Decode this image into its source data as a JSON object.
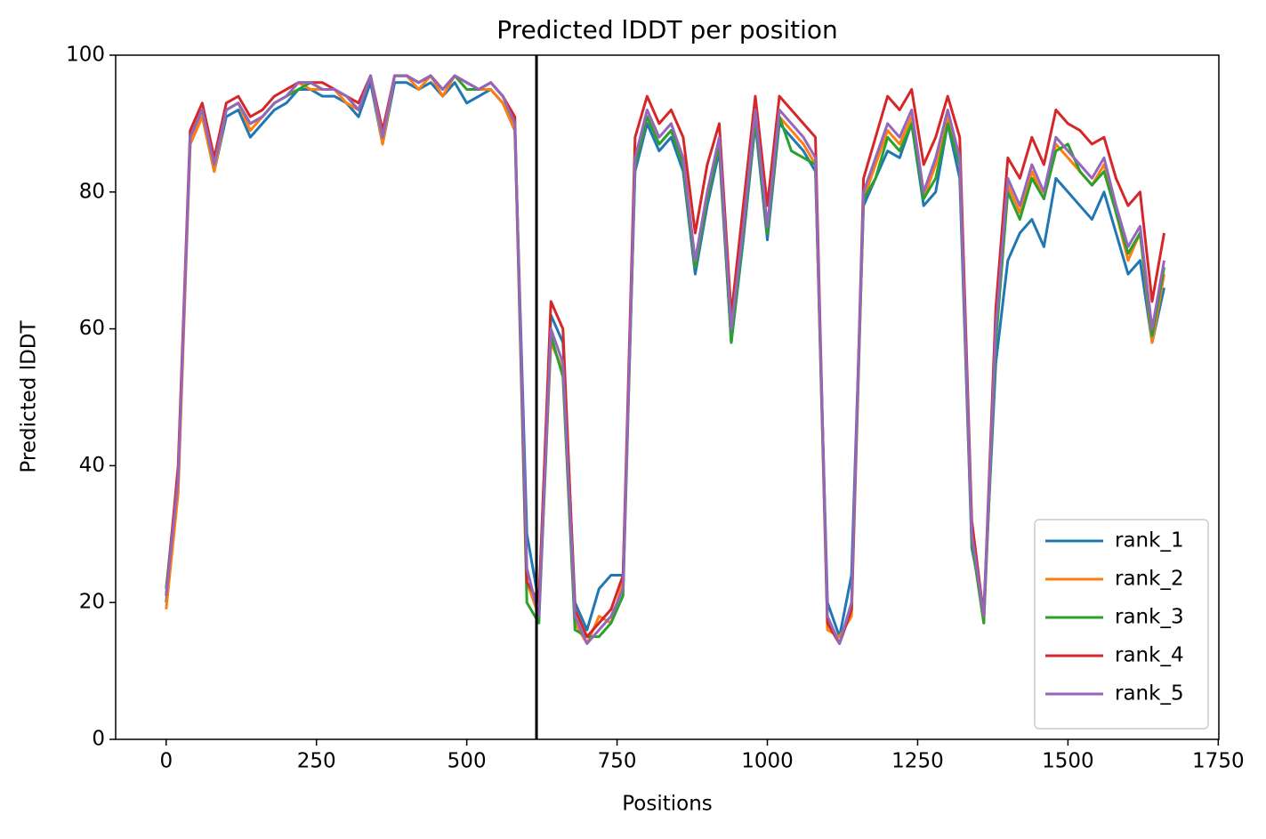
{
  "chart_data": {
    "type": "line",
    "title": "Predicted lDDT per position",
    "xlabel": "Positions",
    "ylabel": "Predicted lDDT",
    "x": [
      0,
      20,
      40,
      60,
      80,
      100,
      120,
      140,
      160,
      180,
      200,
      220,
      240,
      260,
      280,
      300,
      320,
      340,
      360,
      380,
      400,
      420,
      440,
      460,
      480,
      500,
      520,
      540,
      560,
      580,
      600,
      620,
      640,
      660,
      680,
      700,
      720,
      740,
      760,
      780,
      800,
      820,
      840,
      860,
      880,
      900,
      920,
      940,
      960,
      980,
      1000,
      1020,
      1040,
      1060,
      1080,
      1100,
      1120,
      1140,
      1160,
      1180,
      1200,
      1220,
      1240,
      1260,
      1280,
      1300,
      1320,
      1340,
      1360,
      1380,
      1400,
      1420,
      1440,
      1460,
      1480,
      1500,
      1520,
      1540,
      1560,
      1580,
      1600,
      1620,
      1640,
      1660
    ],
    "series": [
      {
        "name": "rank_1",
        "color": "#1f77b4",
        "values": [
          20,
          39,
          87,
          91,
          83,
          91,
          92,
          88,
          90,
          92,
          93,
          95,
          95,
          94,
          94,
          93,
          91,
          96,
          87,
          96,
          96,
          95,
          96,
          94,
          96,
          93,
          94,
          95,
          93,
          89,
          30,
          20,
          62,
          58,
          20,
          16,
          22,
          24,
          24,
          83,
          90,
          86,
          88,
          83,
          68,
          78,
          86,
          58,
          73,
          90,
          73,
          90,
          88,
          86,
          83,
          20,
          15,
          24,
          78,
          82,
          86,
          85,
          90,
          78,
          80,
          90,
          82,
          28,
          19,
          55,
          70,
          74,
          76,
          72,
          82,
          80,
          78,
          76,
          80,
          74,
          68,
          70,
          58,
          66
        ]
      },
      {
        "name": "rank_2",
        "color": "#ff7f0e",
        "values": [
          19,
          36,
          87,
          91,
          83,
          92,
          93,
          89,
          91,
          93,
          94,
          96,
          95,
          95,
          95,
          93,
          92,
          97,
          87,
          97,
          97,
          95,
          97,
          94,
          97,
          96,
          95,
          95,
          93,
          89,
          23,
          18,
          58,
          54,
          17,
          14,
          18,
          17,
          23,
          84,
          91,
          87,
          89,
          84,
          69,
          79,
          87,
          59,
          74,
          91,
          74,
          91,
          89,
          87,
          84,
          16,
          15,
          18,
          79,
          84,
          89,
          87,
          91,
          79,
          84,
          91,
          84,
          29,
          17,
          59,
          81,
          77,
          83,
          79,
          87,
          85,
          83,
          81,
          84,
          77,
          70,
          74,
          58,
          68
        ]
      },
      {
        "name": "rank_3",
        "color": "#2ca02c",
        "values": [
          22,
          39,
          88,
          92,
          84,
          92,
          93,
          90,
          91,
          93,
          94,
          95,
          96,
          95,
          95,
          94,
          92,
          97,
          88,
          97,
          97,
          96,
          97,
          95,
          97,
          95,
          95,
          96,
          94,
          90,
          20,
          17,
          59,
          53,
          16,
          15,
          15,
          17,
          21,
          84,
          91,
          87,
          89,
          84,
          69,
          79,
          87,
          58,
          74,
          91,
          74,
          91,
          86,
          85,
          84,
          17,
          14,
          19,
          79,
          82,
          88,
          86,
          90,
          79,
          82,
          90,
          84,
          29,
          17,
          58,
          80,
          76,
          82,
          79,
          86,
          87,
          83,
          81,
          83,
          77,
          71,
          74,
          59,
          69
        ]
      },
      {
        "name": "rank_4",
        "color": "#d62728",
        "values": [
          21,
          40,
          89,
          93,
          85,
          93,
          94,
          91,
          92,
          94,
          95,
          96,
          96,
          96,
          95,
          94,
          93,
          97,
          89,
          97,
          97,
          96,
          97,
          95,
          97,
          96,
          95,
          96,
          94,
          91,
          23,
          20,
          64,
          60,
          19,
          15,
          17,
          19,
          24,
          88,
          94,
          90,
          92,
          88,
          74,
          84,
          90,
          62,
          78,
          94,
          78,
          94,
          92,
          90,
          88,
          17,
          14,
          19,
          82,
          88,
          94,
          92,
          95,
          84,
          88,
          94,
          88,
          32,
          18,
          63,
          85,
          82,
          88,
          84,
          92,
          90,
          89,
          87,
          88,
          82,
          78,
          80,
          64,
          74
        ]
      },
      {
        "name": "rank_5",
        "color": "#9467bd",
        "values": [
          21,
          38,
          88,
          92,
          84,
          92,
          93,
          90,
          91,
          93,
          94,
          96,
          96,
          95,
          95,
          94,
          92,
          97,
          88,
          97,
          97,
          96,
          97,
          95,
          97,
          96,
          95,
          96,
          94,
          90,
          25,
          18,
          60,
          55,
          18,
          14,
          16,
          18,
          22,
          85,
          92,
          88,
          90,
          85,
          70,
          80,
          88,
          60,
          75,
          92,
          75,
          92,
          90,
          88,
          85,
          18,
          14,
          20,
          80,
          85,
          90,
          88,
          92,
          80,
          85,
          92,
          85,
          30,
          18,
          60,
          82,
          78,
          84,
          80,
          88,
          86,
          84,
          82,
          85,
          78,
          72,
          75,
          60,
          70
        ]
      }
    ],
    "vline": 616,
    "vline_color": "#000000",
    "xlim": [
      -84,
      1751
    ],
    "ylim": [
      0,
      100
    ],
    "xticks": [
      0,
      250,
      500,
      750,
      1000,
      1250,
      1500,
      1750
    ],
    "yticks": [
      0,
      20,
      40,
      60,
      80,
      100
    ],
    "legend": "lower right",
    "grid": false
  }
}
